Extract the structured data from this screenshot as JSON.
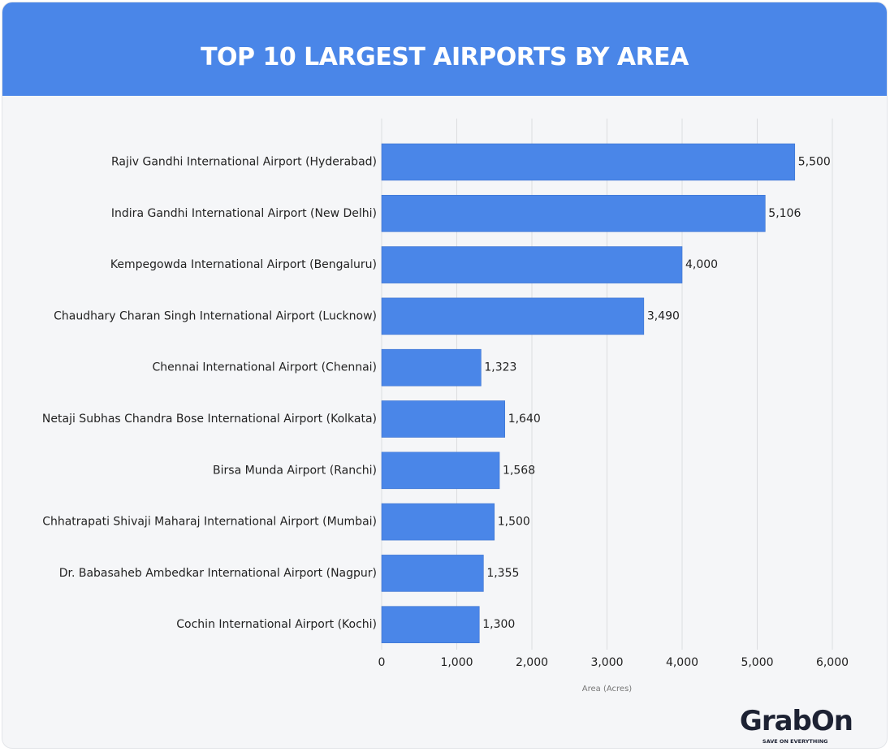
{
  "chart_data": {
    "type": "hbar",
    "title": "TOP 10 LARGEST AIRPORTS BY AREA",
    "categories": [
      "Rajiv Gandhi International Airport (Hyderabad)",
      "Indira Gandhi International Airport (New Delhi)",
      "Kempegowda International Airport (Bengaluru)",
      "Chaudhary Charan Singh International Airport (Lucknow)",
      "Chennai International Airport (Chennai)",
      "Netaji Subhas Chandra Bose International Airport (Kolkata)",
      "Birsa Munda Airport (Ranchi)",
      "Chhatrapati Shivaji Maharaj International Airport (Mumbai)",
      "Dr. Babasaheb Ambedkar International Airport (Nagpur)",
      "Cochin International Airport (Kochi)"
    ],
    "values": [
      5500,
      5106,
      4000,
      3490,
      1323,
      1640,
      1568,
      1500,
      1355,
      1300
    ],
    "value_labels": [
      "5,500",
      "5,106",
      "4,000",
      "3,490",
      "1,323",
      "1,640",
      "1,568",
      "1,500",
      "1,355",
      "1,300"
    ],
    "color": "#4a86e8",
    "x_label": "Area (Acres)",
    "xlim": [
      0,
      6000
    ],
    "xticks": [
      0,
      {
        "value": 1000,
        "label": "1,000"
      },
      {
        "value": 2000,
        "label": "2,000"
      },
      {
        "value": 3000,
        "label": "3,000"
      },
      {
        "value": 4000,
        "label": "4,000"
      },
      {
        "value": 5000,
        "label": "5,000"
      },
      {
        "value": 6000,
        "label": "6,000"
      }
    ],
    "grid": true
  },
  "logo": {
    "name": "GrabOn",
    "tagline": "SAVE ON EVERYTHING"
  }
}
